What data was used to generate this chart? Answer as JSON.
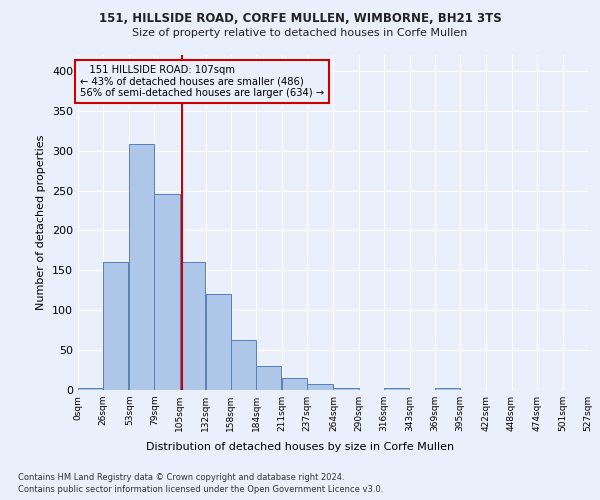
{
  "title1": "151, HILLSIDE ROAD, CORFE MULLEN, WIMBORNE, BH21 3TS",
  "title2": "Size of property relative to detached houses in Corfe Mullen",
  "xlabel": "Distribution of detached houses by size in Corfe Mullen",
  "ylabel": "Number of detached properties",
  "footnote1": "Contains HM Land Registry data © Crown copyright and database right 2024.",
  "footnote2": "Contains public sector information licensed under the Open Government Licence v3.0.",
  "annotation_line1": "   151 HILLSIDE ROAD: 107sqm",
  "annotation_line2": "← 43% of detached houses are smaller (486)",
  "annotation_line3": "56% of semi-detached houses are larger (634) →",
  "property_size": 107,
  "bin_edges": [
    0,
    26,
    53,
    79,
    105,
    132,
    158,
    184,
    211,
    237,
    264,
    290,
    316,
    343,
    369,
    395,
    422,
    448,
    474,
    501,
    527
  ],
  "bin_counts": [
    3,
    160,
    308,
    246,
    160,
    120,
    63,
    30,
    15,
    8,
    3,
    0,
    3,
    0,
    3,
    0,
    0,
    0,
    0,
    0
  ],
  "bar_color": "#aec6e8",
  "bar_edge_color": "#5580b8",
  "bar_edge_width": 0.7,
  "vline_color": "#cc0000",
  "vline_x": 107,
  "bg_color": "#eaf0fb",
  "grid_color": "#ffffff",
  "annotation_box_color": "#cc0000",
  "ylim": [
    0,
    420
  ],
  "yticks": [
    0,
    50,
    100,
    150,
    200,
    250,
    300,
    350,
    400
  ]
}
